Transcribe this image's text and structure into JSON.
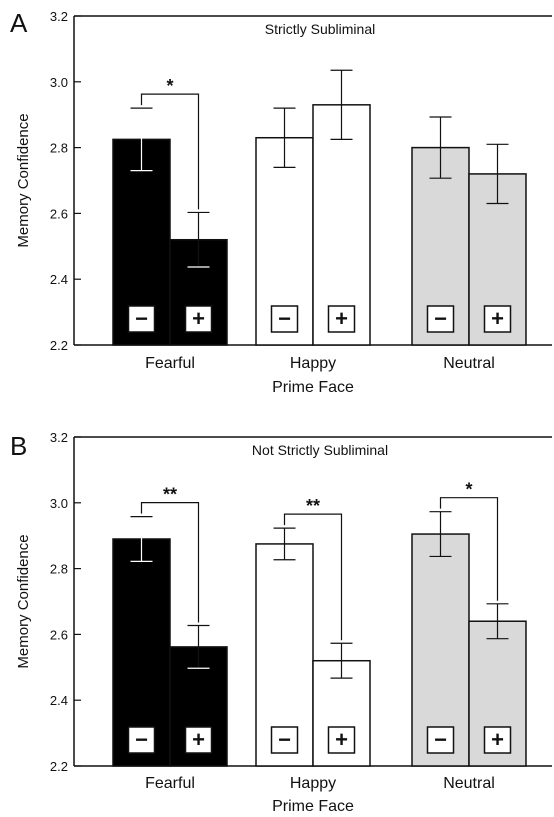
{
  "chart_data": [
    {
      "panel_label": "A",
      "type": "bar",
      "title": "Strictly Subliminal",
      "ylabel": "Memory Confidence",
      "xlabel": "Prime Face",
      "ylim": [
        2.2,
        3.2
      ],
      "yticks": [
        "2.2",
        "2.4",
        "2.6",
        "2.8",
        "3.0",
        "3.2"
      ],
      "categories": [
        "Fearful",
        "Happy",
        "Neutral"
      ],
      "series": [
        {
          "name": "−",
          "values": [
            2.825,
            2.83,
            2.8
          ],
          "errors": [
            0.095,
            0.09,
            0.093
          ]
        },
        {
          "name": "+",
          "values": [
            2.52,
            2.93,
            2.72
          ],
          "errors": [
            0.083,
            0.105,
            0.09
          ]
        }
      ],
      "category_colors": [
        "#000000",
        "#ffffff",
        "#d9d9d9"
      ],
      "significance": [
        {
          "category": "Fearful",
          "label": "*"
        }
      ]
    },
    {
      "panel_label": "B",
      "type": "bar",
      "title": "Not Strictly Subliminal",
      "ylabel": "Memory Confidence",
      "xlabel": "Prime Face",
      "ylim": [
        2.2,
        3.2
      ],
      "yticks": [
        "2.2",
        "2.4",
        "2.6",
        "2.8",
        "3.0",
        "3.2"
      ],
      "categories": [
        "Fearful",
        "Happy",
        "Neutral"
      ],
      "series": [
        {
          "name": "−",
          "values": [
            2.89,
            2.875,
            2.905
          ],
          "errors": [
            0.068,
            0.048,
            0.068
          ]
        },
        {
          "name": "+",
          "values": [
            2.562,
            2.52,
            2.64
          ],
          "errors": [
            0.065,
            0.053,
            0.053
          ]
        }
      ],
      "category_colors": [
        "#000000",
        "#ffffff",
        "#d9d9d9"
      ],
      "significance": [
        {
          "category": "Fearful",
          "label": "**"
        },
        {
          "category": "Happy",
          "label": "**"
        },
        {
          "category": "Neutral",
          "label": "*"
        }
      ]
    }
  ]
}
